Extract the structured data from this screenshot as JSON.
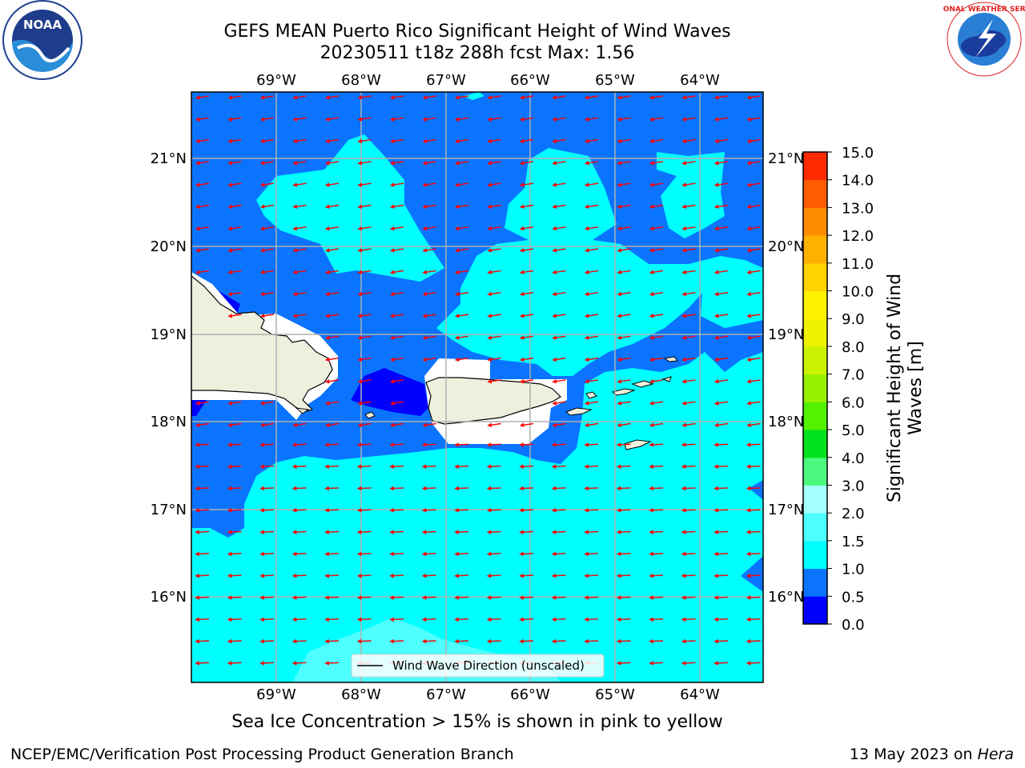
{
  "title": {
    "line1": "GEFS MEAN Puerto Rico Significant Height of Wind Waves",
    "line2": "20230511 t18z 288h fcst   Max: 1.56"
  },
  "map": {
    "lon_labels": [
      "69°W",
      "68°W",
      "67°W",
      "66°W",
      "65°W",
      "64°W"
    ],
    "lat_labels": [
      "21°N",
      "20°N",
      "19°N",
      "18°N",
      "17°N",
      "16°N"
    ],
    "legend_label": "Wind Wave Direction (unscaled)",
    "colors": {
      "band_0_0_5": "#0000ff",
      "band_0_5_1_0": "#0a74ff",
      "band_1_0_1_5": "#00ffff",
      "band_1_5_2_0": "#4dffff",
      "land": "#efefde",
      "arrow": "#ff0000"
    }
  },
  "colorbar": {
    "label_line1": "Significant Height of Wind",
    "label_line2": "Waves [m]",
    "ticks": [
      "0.0",
      "0.5",
      "1.0",
      "1.5",
      "2.0",
      "3.0",
      "4.0",
      "5.0",
      "6.0",
      "7.0",
      "8.0",
      "9.0",
      "10.0",
      "11.0",
      "12.0",
      "13.0",
      "14.0",
      "15.0"
    ],
    "colors": [
      "#0000ff",
      "#0a74ff",
      "#00ffff",
      "#4dffff",
      "#a5ffff",
      "#4cf97f",
      "#00e01c",
      "#52f200",
      "#96f000",
      "#cbf200",
      "#eef200",
      "#fff200",
      "#ffd200",
      "#ffb100",
      "#ff8c00",
      "#ff5c00",
      "#ff2a00"
    ]
  },
  "bottom_note": "Sea Ice Concentration > 15% is shown in pink to yellow",
  "footer": {
    "left": "NCEP/EMC/Verification Post Processing Product Generation Branch",
    "right_date": "13 May 2023 on ",
    "right_system": "Hera"
  },
  "logos": {
    "left": "NOAA",
    "right": "NATIONAL WEATHER SERVICE"
  }
}
